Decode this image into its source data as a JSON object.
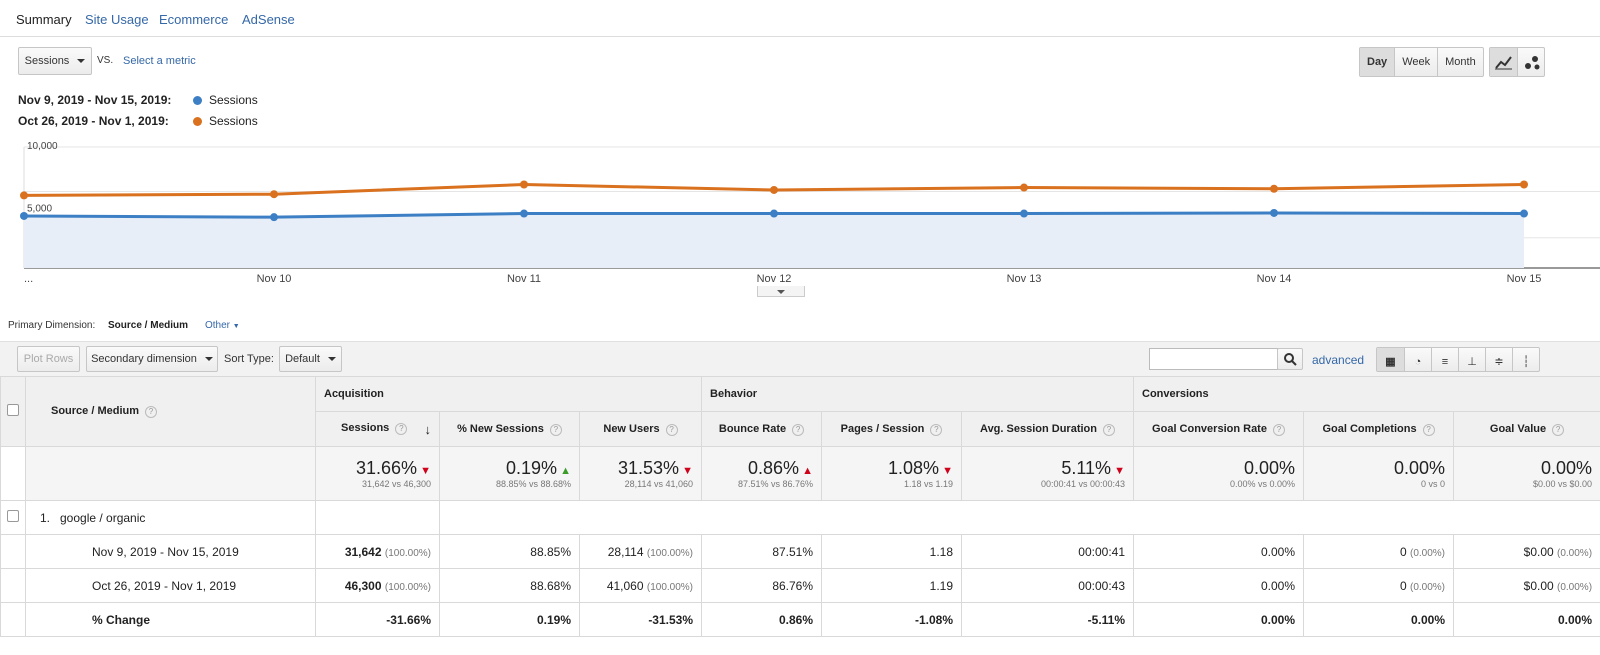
{
  "tabs": [
    {
      "label": "Summary",
      "active": true
    },
    {
      "label": "Site Usage",
      "active": false
    },
    {
      "label": "Ecommerce",
      "active": false
    },
    {
      "label": "AdSense",
      "active": false
    }
  ],
  "controls": {
    "metric_select": "Sessions",
    "vs": "VS.",
    "select_metric": "Select a metric",
    "periods": [
      "Day",
      "Week",
      "Month"
    ],
    "active_period": "Day"
  },
  "legend": [
    {
      "range": "Nov 9, 2019 - Nov 15, 2019:",
      "series": "Sessions",
      "color": "#3d7fc4"
    },
    {
      "range": "Oct 26, 2019 - Nov 1, 2019:",
      "series": "Sessions",
      "color": "#d9711f"
    }
  ],
  "chart_data": {
    "type": "line",
    "x": [
      "...",
      "Nov 10",
      "Nov 11",
      "Nov 12",
      "Nov 13",
      "Nov 14",
      "Nov 15"
    ],
    "y_ticks": [
      "10,000",
      "5,000"
    ],
    "ylim": [
      0,
      10000
    ],
    "series": [
      {
        "name": "Sessions",
        "color": "#3d7fc4",
        "values": [
          4300,
          4200,
          4500,
          4500,
          4500,
          4550,
          4500
        ],
        "fill": true
      },
      {
        "name": "Sessions",
        "color": "#d9711f",
        "values": [
          6000,
          6100,
          6900,
          6450,
          6650,
          6550,
          6900
        ]
      }
    ]
  },
  "dimension": {
    "label": "Primary Dimension:",
    "value": "Source / Medium",
    "other": "Other"
  },
  "toolbar": {
    "plot_rows": "Plot Rows",
    "secondary": "Secondary dimension",
    "sort_label": "Sort Type:",
    "sort_value": "Default",
    "advanced": "advanced"
  },
  "table": {
    "dim_header": "Source / Medium",
    "groups": [
      "Acquisition",
      "Behavior",
      "Conversions"
    ],
    "columns": [
      "Sessions",
      "% New Sessions",
      "New Users",
      "Bounce Rate",
      "Pages / Session",
      "Avg. Session Duration",
      "Goal Conversion Rate",
      "Goal Completions",
      "Goal Value"
    ],
    "totals": [
      {
        "big": "31.66%",
        "dir": "down",
        "small": "31,642 vs 46,300"
      },
      {
        "big": "0.19%",
        "dir": "up",
        "small": "88.85% vs 88.68%"
      },
      {
        "big": "31.53%",
        "dir": "down",
        "small": "28,114 vs 41,060"
      },
      {
        "big": "0.86%",
        "dir": "up-red",
        "small": "87.51% vs 86.76%"
      },
      {
        "big": "1.08%",
        "dir": "down",
        "small": "1.18 vs 1.19"
      },
      {
        "big": "5.11%",
        "dir": "down",
        "small": "00:00:41 vs 00:00:43"
      },
      {
        "big": "0.00%",
        "dir": "",
        "small": "0.00% vs 0.00%"
      },
      {
        "big": "0.00%",
        "dir": "",
        "small": "0 vs 0"
      },
      {
        "big": "0.00%",
        "dir": "",
        "small": "$0.00 vs $0.00"
      }
    ],
    "row_group": {
      "index": "1.",
      "label": "google / organic"
    },
    "rows": [
      {
        "label": "Nov 9, 2019 - Nov 15, 2019",
        "cells": [
          [
            "31,642",
            "(100.00%)"
          ],
          [
            "88.85%",
            ""
          ],
          [
            "28,114",
            "(100.00%)"
          ],
          [
            "87.51%",
            ""
          ],
          [
            "1.18",
            ""
          ],
          [
            "00:00:41",
            ""
          ],
          [
            "0.00%",
            ""
          ],
          [
            "0",
            "(0.00%)"
          ],
          [
            "$0.00",
            "(0.00%)"
          ]
        ]
      },
      {
        "label": "Oct 26, 2019 - Nov 1, 2019",
        "cells": [
          [
            "46,300",
            "(100.00%)"
          ],
          [
            "88.68%",
            ""
          ],
          [
            "41,060",
            "(100.00%)"
          ],
          [
            "86.76%",
            ""
          ],
          [
            "1.19",
            ""
          ],
          [
            "00:00:43",
            ""
          ],
          [
            "0.00%",
            ""
          ],
          [
            "0",
            "(0.00%)"
          ],
          [
            "$0.00",
            "(0.00%)"
          ]
        ]
      },
      {
        "label": "% Change",
        "bold": true,
        "cells": [
          [
            "-31.66%",
            ""
          ],
          [
            "0.19%",
            ""
          ],
          [
            "-31.53%",
            ""
          ],
          [
            "0.86%",
            ""
          ],
          [
            "-1.08%",
            ""
          ],
          [
            "-5.11%",
            ""
          ],
          [
            "0.00%",
            ""
          ],
          [
            "0.00%",
            ""
          ],
          [
            "0.00%",
            ""
          ]
        ]
      }
    ]
  }
}
